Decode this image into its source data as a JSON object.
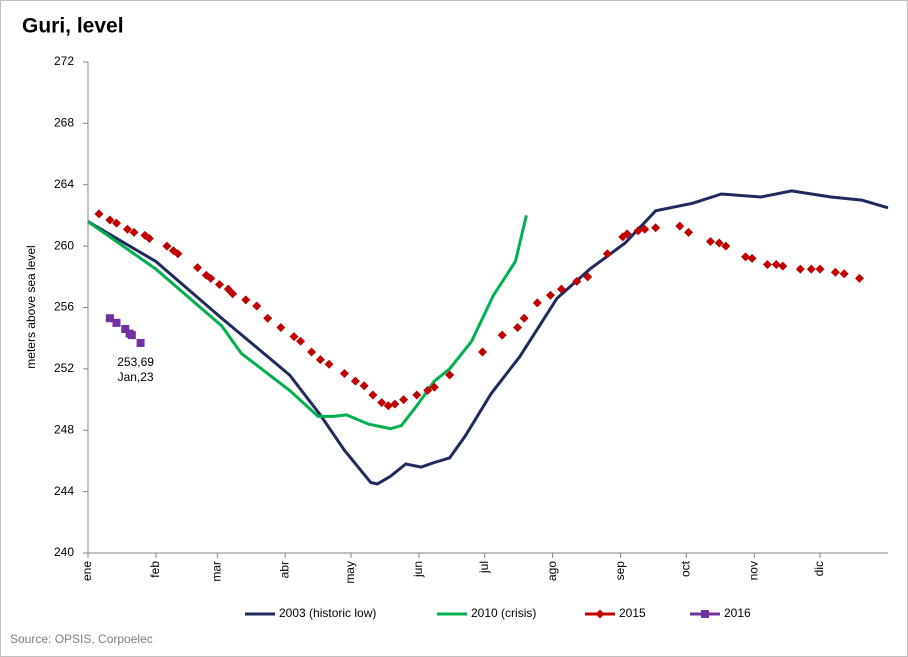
{
  "chart_data": {
    "type": "line",
    "title": "Guri, level",
    "y_label": "meters above sea level",
    "source": "Source: OPSIS, Corpoelec",
    "xlim": [
      0,
      365
    ],
    "xticks": [
      {
        "value": 0,
        "label": "ene"
      },
      {
        "value": 31,
        "label": "feb"
      },
      {
        "value": 59,
        "label": "mar"
      },
      {
        "value": 90,
        "label": "abr"
      },
      {
        "value": 120,
        "label": "may"
      },
      {
        "value": 151,
        "label": "jun"
      },
      {
        "value": 181,
        "label": "jul"
      },
      {
        "value": 212,
        "label": "ago"
      },
      {
        "value": 243,
        "label": "sep"
      },
      {
        "value": 273,
        "label": "oct"
      },
      {
        "value": 304,
        "label": "nov"
      },
      {
        "value": 334,
        "label": "dic"
      }
    ],
    "ylim": [
      240,
      272
    ],
    "yticks": [
      240,
      244,
      248,
      252,
      256,
      260,
      264,
      268,
      272
    ],
    "grid": false,
    "legend": "bottom",
    "series": [
      {
        "name": "2003 (historic low)",
        "color": "#1f2a5e",
        "style": "line",
        "x": [
          0,
          31,
          61,
          92,
          106,
          117,
          129,
          132,
          138,
          145,
          152,
          158,
          165,
          172,
          184,
          197,
          214,
          229,
          245,
          259,
          276,
          289,
          307,
          321,
          339,
          353,
          365
        ],
        "values": [
          261.6,
          259.0,
          255.3,
          251.6,
          249.0,
          246.7,
          244.6,
          244.5,
          245.0,
          245.8,
          245.6,
          245.9,
          246.2,
          247.6,
          250.4,
          252.8,
          256.6,
          258.5,
          260.2,
          262.3,
          262.8,
          263.4,
          263.2,
          263.6,
          263.2,
          263.0,
          262.5
        ]
      },
      {
        "name": "2010 (crisis)",
        "color": "#00b050",
        "style": "line",
        "x": [
          0,
          31,
          61,
          70,
          92,
          105,
          112,
          118,
          128,
          138,
          143,
          150,
          158,
          165,
          175,
          185,
          195,
          200
        ],
        "values": [
          261.6,
          258.5,
          254.8,
          253.0,
          250.6,
          248.9,
          248.9,
          249.0,
          248.4,
          248.1,
          248.3,
          249.6,
          251.2,
          252.0,
          253.8,
          256.8,
          259.0,
          262.0
        ]
      },
      {
        "name": "2015",
        "color": "#c00000",
        "style": "diamond",
        "x": [
          5,
          10,
          13,
          18,
          21,
          26,
          28,
          36,
          39,
          41,
          50,
          54,
          56,
          60,
          64,
          66,
          72,
          77,
          82,
          88,
          94,
          97,
          102,
          106,
          110,
          117,
          122,
          126,
          130,
          134,
          137,
          140,
          144,
          150,
          155,
          158,
          165,
          180,
          189,
          196,
          199,
          205,
          211,
          216,
          223,
          228,
          237,
          244,
          246,
          251,
          254,
          259,
          270,
          274,
          284,
          288,
          291,
          300,
          303,
          310,
          314,
          317,
          325,
          330,
          334,
          341,
          345,
          352
        ],
        "values": [
          262.1,
          261.7,
          261.5,
          261.1,
          260.9,
          260.7,
          260.5,
          260.0,
          259.7,
          259.5,
          258.6,
          258.1,
          257.9,
          257.5,
          257.2,
          256.9,
          256.5,
          256.1,
          255.3,
          254.7,
          254.1,
          253.8,
          253.1,
          252.6,
          252.3,
          251.7,
          251.2,
          250.9,
          250.3,
          249.8,
          249.6,
          249.7,
          250.0,
          250.3,
          250.6,
          250.8,
          251.6,
          253.1,
          254.2,
          254.7,
          255.3,
          256.3,
          256.8,
          257.2,
          257.7,
          258.0,
          259.5,
          260.6,
          260.8,
          261.0,
          261.1,
          261.2,
          261.3,
          260.9,
          260.3,
          260.2,
          260.0,
          259.3,
          259.2,
          258.8,
          258.8,
          258.7,
          258.5,
          258.5,
          258.5,
          258.3,
          258.2,
          257.9
        ]
      },
      {
        "name": "2016",
        "color": "#7030a0",
        "style": "square",
        "x": [
          10,
          13,
          17,
          19,
          20,
          24
        ],
        "values": [
          255.3,
          255.0,
          254.6,
          254.3,
          254.2,
          253.69
        ]
      }
    ],
    "annotations": [
      "253,69",
      "Jan,23"
    ]
  }
}
